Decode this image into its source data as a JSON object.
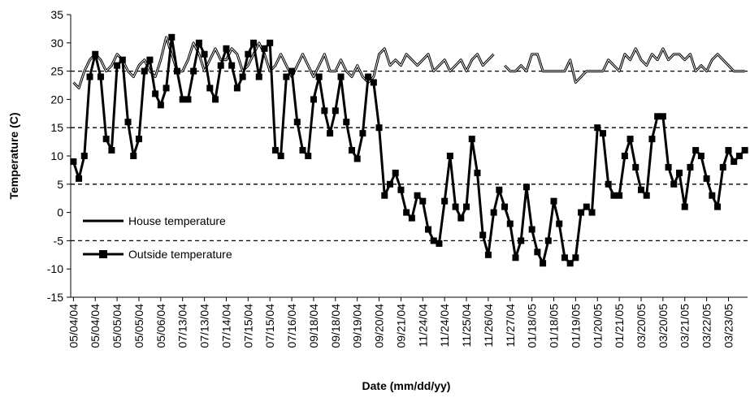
{
  "chart_data": {
    "type": "line",
    "x_label": "Date (mm/dd/yy)",
    "y_label": "Temperature (C)",
    "categories": [
      "05/04/04",
      null,
      null,
      null,
      "05/04/04",
      null,
      null,
      null,
      "05/05/04",
      null,
      null,
      null,
      "05/05/04",
      null,
      null,
      null,
      "05/06/04",
      null,
      null,
      null,
      "07/13/04",
      null,
      null,
      null,
      "07/13/04",
      null,
      null,
      null,
      "07/14/04",
      null,
      null,
      null,
      "07/15/04",
      null,
      null,
      null,
      "07/15/04",
      null,
      null,
      null,
      "07/16/04",
      null,
      null,
      null,
      "09/18/04",
      null,
      null,
      null,
      "09/18/04",
      null,
      null,
      null,
      "09/19/04",
      null,
      null,
      null,
      "09/20/04",
      null,
      null,
      null,
      "09/21/04",
      null,
      null,
      null,
      "11/24/04",
      null,
      null,
      null,
      "11/24/04",
      null,
      null,
      null,
      "11/25/04",
      null,
      null,
      null,
      "11/26/04",
      null,
      null,
      null,
      "11/27/04",
      null,
      null,
      null,
      "01/18/05",
      null,
      null,
      null,
      "01/18/05",
      null,
      null,
      null,
      "01/19/05",
      null,
      null,
      null,
      "01/20/05",
      null,
      null,
      null,
      "01/21/05",
      null,
      null,
      null,
      "03/20/05",
      null,
      null,
      null,
      "03/20/05",
      null,
      null,
      null,
      "03/21/05",
      null,
      null,
      null,
      "03/22/05",
      null,
      null,
      null,
      "03/23/05",
      null,
      null,
      null
    ],
    "series": [
      {
        "name": "House temperature",
        "color": "#000000",
        "marker": "none",
        "values": [
          23,
          22,
          25,
          27,
          28,
          27,
          25,
          26,
          28,
          27,
          25,
          24,
          26,
          27,
          25,
          24,
          27,
          31,
          28,
          25,
          25,
          27,
          30,
          28,
          25,
          27,
          29,
          27,
          27,
          29,
          28,
          25,
          26,
          28,
          30,
          28,
          25,
          26,
          28,
          26,
          24,
          26,
          28,
          26,
          24,
          26,
          28,
          25,
          25,
          27,
          25,
          24,
          26,
          24,
          23,
          24,
          28,
          29,
          26,
          27,
          26,
          28,
          27,
          26,
          27,
          28,
          25,
          26,
          27,
          25,
          26,
          27,
          25,
          27,
          28,
          26,
          27,
          28,
          null,
          26,
          25,
          25,
          26,
          25,
          28,
          28,
          25,
          25,
          25,
          25,
          25,
          27,
          23,
          24,
          25,
          25,
          25,
          25,
          27,
          26,
          25,
          28,
          27,
          29,
          27,
          26,
          28,
          27,
          29,
          27,
          28,
          28,
          27,
          28,
          25,
          26,
          25,
          27,
          28,
          27,
          26,
          25,
          25,
          25
        ]
      },
      {
        "name": "Outside temperature",
        "color": "#000000",
        "marker": "square",
        "values": [
          9,
          6,
          10,
          24,
          28,
          24,
          13,
          11,
          26,
          27,
          16,
          10,
          13,
          25,
          27,
          21,
          19,
          22,
          31,
          25,
          20,
          20,
          25,
          30,
          28,
          22,
          20,
          26,
          29,
          26,
          22,
          24,
          28,
          30,
          24,
          29,
          30,
          11,
          10,
          24,
          25,
          16,
          11,
          10,
          20,
          24,
          18,
          14,
          18,
          24,
          16,
          11,
          9.5,
          14,
          24,
          23,
          15,
          3,
          5,
          7,
          4,
          0,
          -1,
          3,
          2,
          -3,
          -5,
          -5.5,
          2,
          10,
          1,
          -1,
          1,
          13,
          7,
          -4,
          -7.5,
          0,
          4,
          1,
          -2,
          -8,
          -5,
          4.5,
          -3,
          -7,
          -9,
          -5,
          2,
          -2,
          -8,
          -9,
          -8,
          0,
          1,
          0,
          15,
          14,
          5,
          3,
          3,
          10,
          13,
          8,
          4,
          3,
          13,
          17,
          17,
          8,
          5,
          7,
          1,
          8,
          11,
          10,
          6,
          3,
          1,
          8,
          11,
          9,
          10,
          11
        ]
      }
    ],
    "ylim": [
      -15,
      35
    ],
    "yticks": [
      -15,
      -10,
      -5,
      0,
      5,
      10,
      15,
      20,
      25,
      30,
      35
    ],
    "dashed_lines": [
      25,
      15,
      5,
      -5
    ],
    "legend": "lower-left"
  }
}
